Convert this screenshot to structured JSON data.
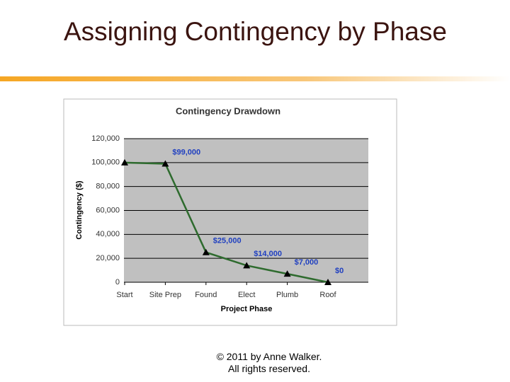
{
  "slide": {
    "title": "Assigning Contingency by Phase",
    "footer": [
      "© 2011 by Anne Walker.",
      "All rights reserved."
    ]
  },
  "chart_data": {
    "type": "line",
    "title": "Contingency Drawdown",
    "x_label": "Project Phase",
    "y_label": "Contingency ($)",
    "categories": [
      "Start",
      "Site Prep",
      "Found",
      "Elect",
      "Plumb",
      "Roof"
    ],
    "values": [
      100000,
      99000,
      25000,
      14000,
      7000,
      0
    ],
    "value_labels": [
      null,
      "$99,000",
      "$25,000",
      "$14,000",
      "$7,000",
      "$0"
    ],
    "color": "#2e6b2e",
    "marker_color": "#000000",
    "label_color": "#2040c0",
    "ylim": [
      0,
      120000
    ],
    "yticks": [
      0,
      {
        "value": 20000,
        "label": "20,000"
      },
      {
        "value": 40000,
        "label": "40,000"
      },
      {
        "value": 60000,
        "label": "60,000"
      },
      {
        "value": 80000,
        "label": "80,000"
      },
      {
        "value": 100000,
        "label": "100,000"
      },
      {
        "value": 120000,
        "label": "120,000"
      }
    ],
    "grid": true
  }
}
